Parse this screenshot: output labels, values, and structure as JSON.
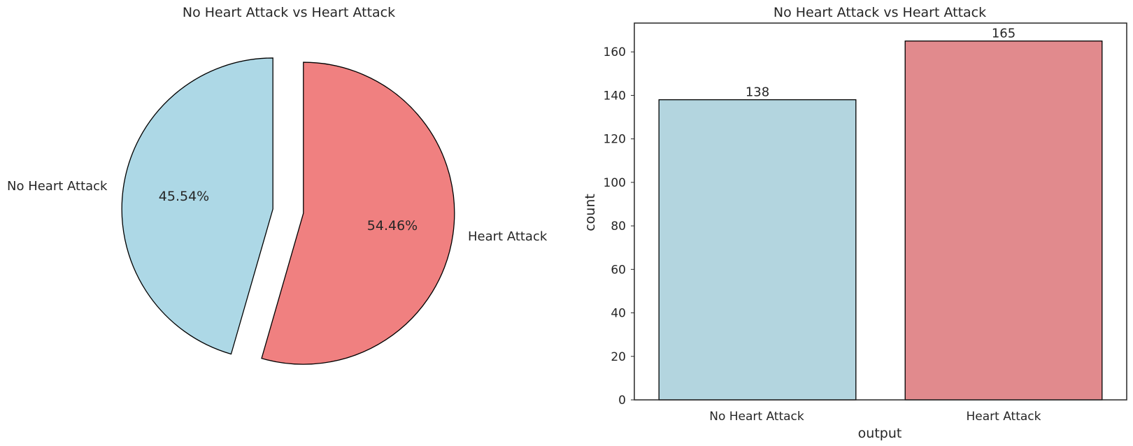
{
  "chart_data": [
    {
      "type": "pie",
      "title": "No Heart Attack vs Heart Attack",
      "labels": [
        "No Heart Attack",
        "Heart Attack"
      ],
      "values": [
        45.54,
        54.46
      ],
      "value_labels": [
        "45.54%",
        "54.46%"
      ],
      "colors": [
        "#add8e6",
        "#f08080"
      ],
      "exploded": true,
      "edgecolor": "#000000"
    },
    {
      "type": "bar",
      "title": "No Heart Attack vs Heart Attack",
      "categories": [
        "No Heart Attack",
        "Heart Attack"
      ],
      "values": [
        138,
        165
      ],
      "value_labels": [
        "138",
        "165"
      ],
      "colors": [
        "#b3d5df",
        "#e18a8d"
      ],
      "xlabel": "output",
      "ylabel": "count",
      "ylim": [
        0,
        173.25
      ],
      "yticks": [
        0,
        20,
        40,
        60,
        80,
        100,
        120,
        140,
        160
      ],
      "grid": false
    }
  ]
}
